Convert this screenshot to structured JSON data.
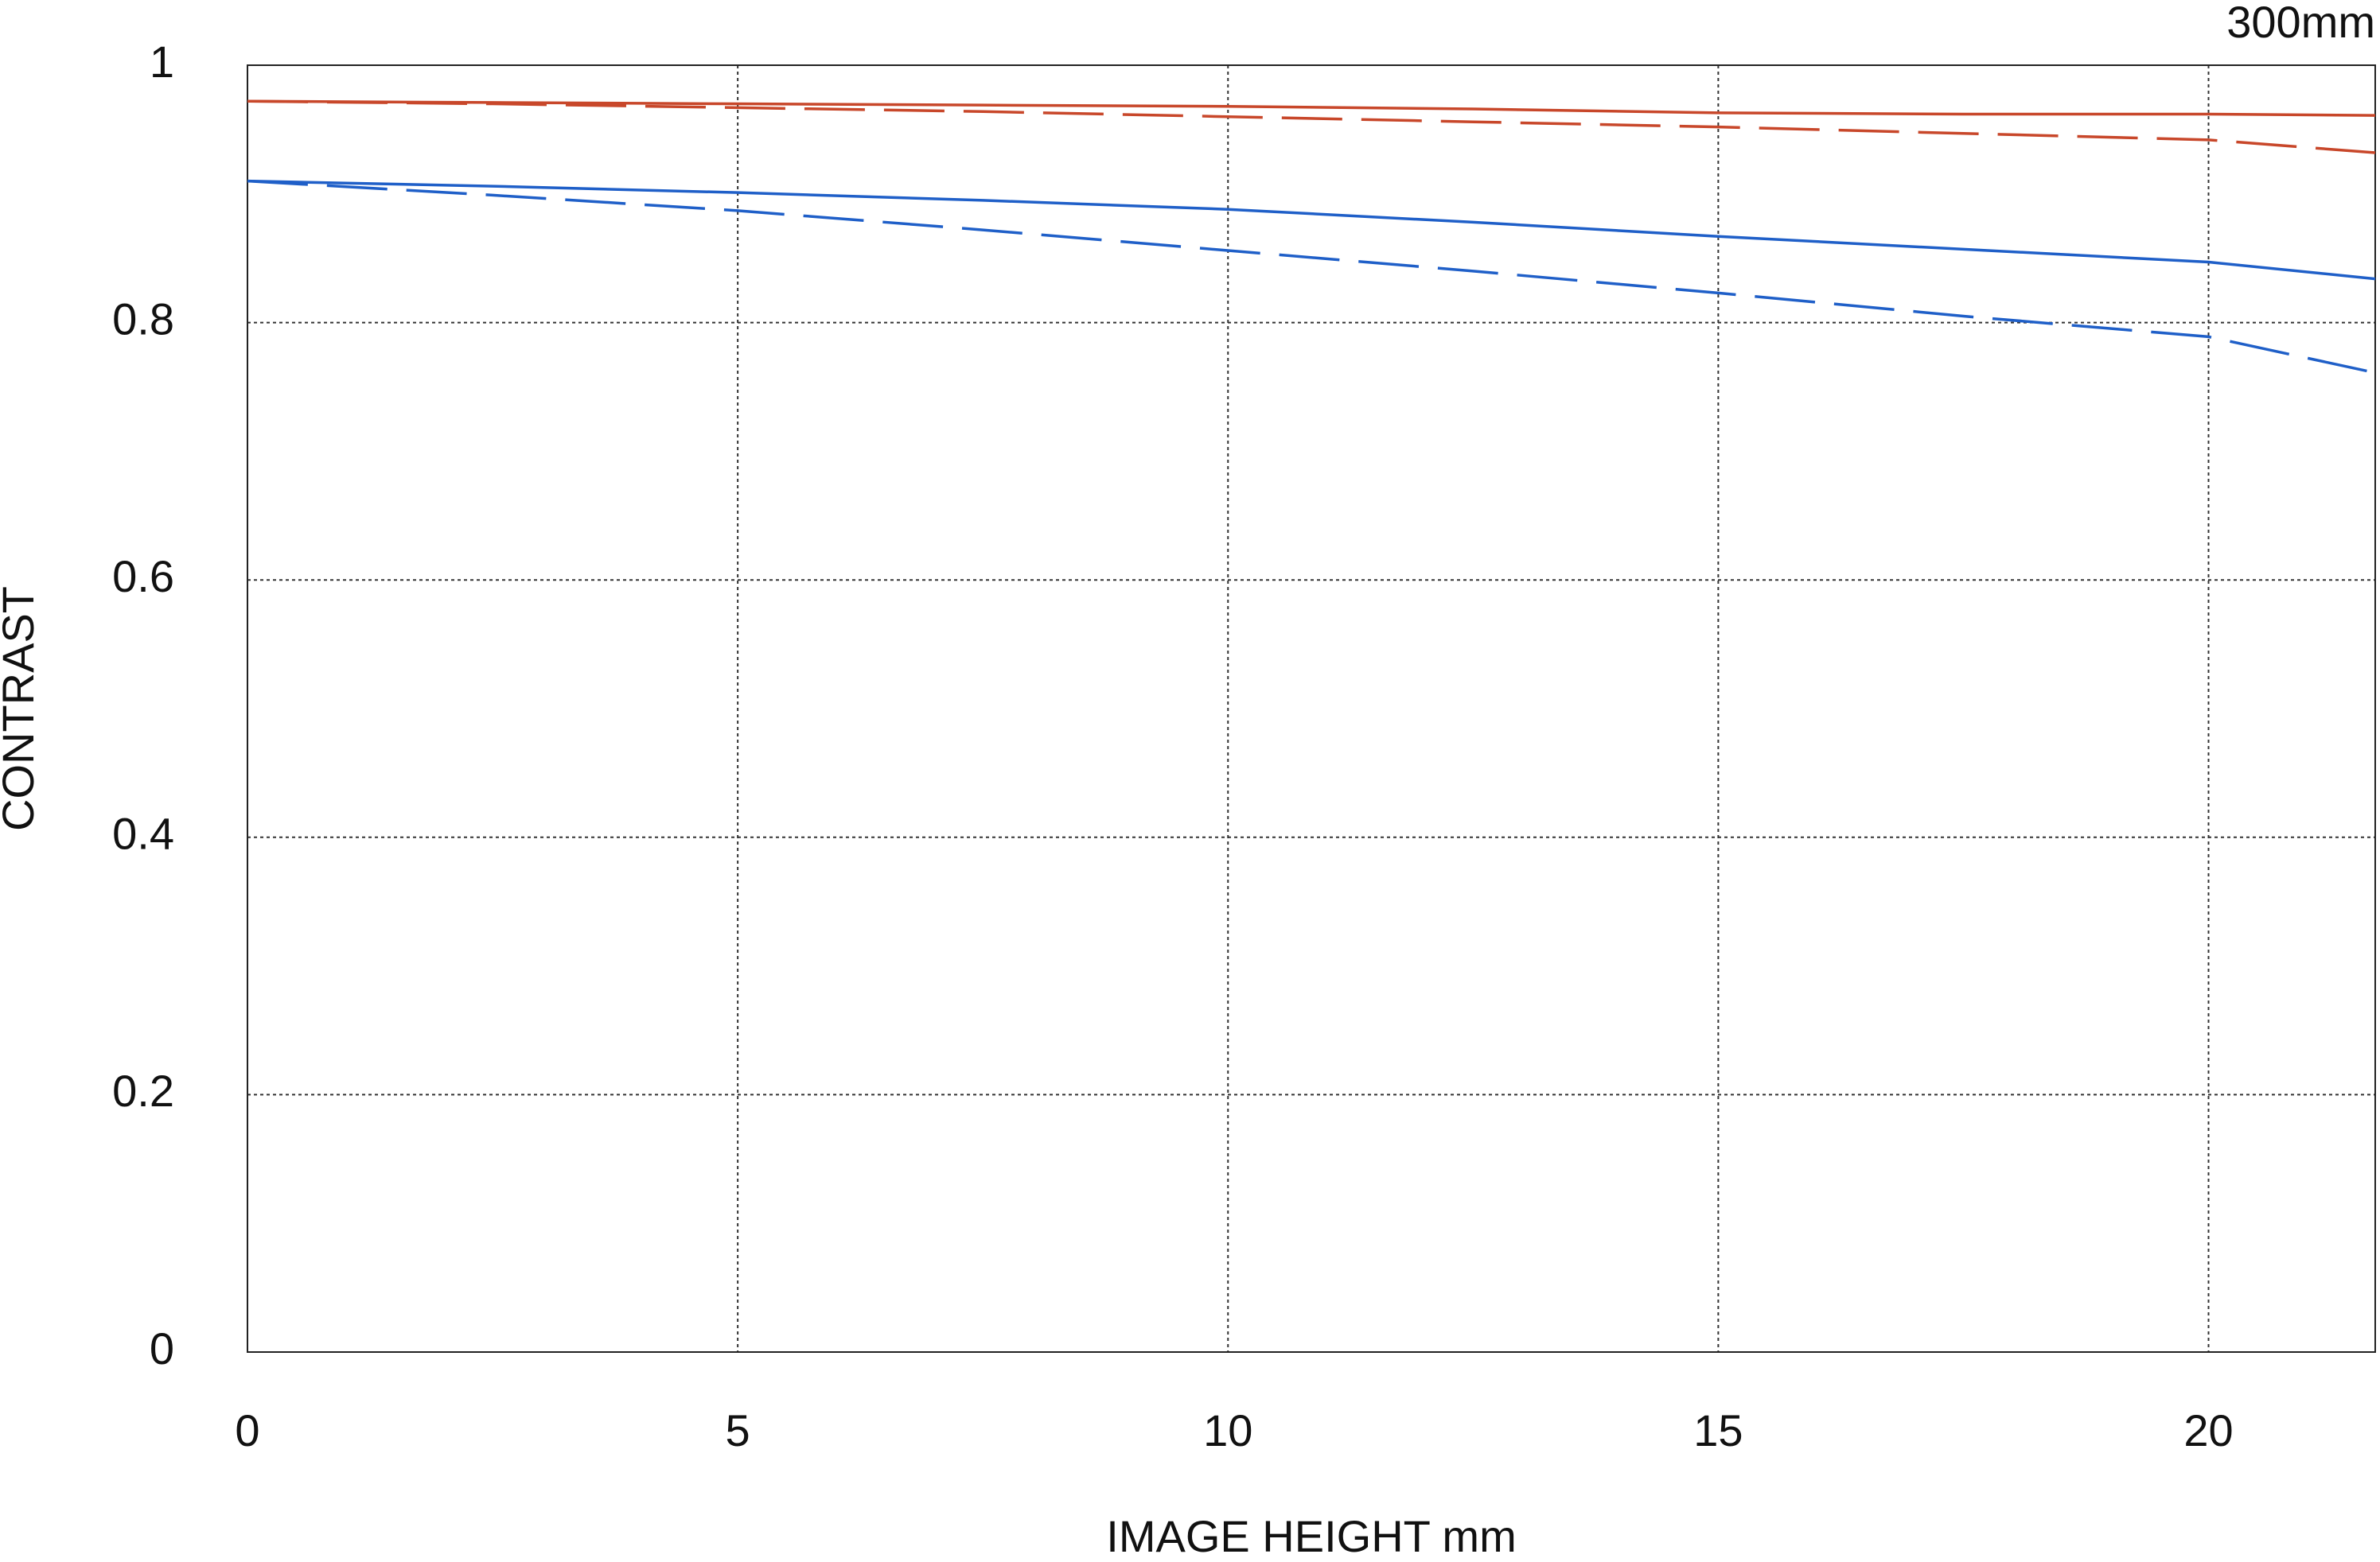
{
  "chart_data": {
    "type": "line",
    "title": "300mm",
    "x_label": "IMAGE HEIGHT  mm",
    "y_label": "CONTRAST",
    "x": [
      0,
      2.5,
      5,
      7.5,
      10,
      12.5,
      15,
      17.5,
      20,
      21.7
    ],
    "series": [
      {
        "color": "#c8472a",
        "dashed": false,
        "values": [
          0.972,
          0.971,
          0.97,
          0.969,
          0.968,
          0.966,
          0.963,
          0.962,
          0.962,
          0.961
        ]
      },
      {
        "color": "#c8472a",
        "dashed": true,
        "values": [
          0.972,
          0.97,
          0.967,
          0.964,
          0.96,
          0.956,
          0.952,
          0.947,
          0.942,
          0.932
        ]
      },
      {
        "color": "#1f5fc8",
        "dashed": false,
        "values": [
          0.91,
          0.906,
          0.901,
          0.895,
          0.888,
          0.878,
          0.867,
          0.857,
          0.847,
          0.834
        ]
      },
      {
        "color": "#1f5fc8",
        "dashed": true,
        "values": [
          0.91,
          0.899,
          0.887,
          0.872,
          0.856,
          0.84,
          0.823,
          0.805,
          0.789,
          0.761
        ]
      }
    ],
    "xlim": [
      0,
      21.7
    ],
    "xticks": [
      0,
      5,
      10,
      15,
      20
    ],
    "ylim": [
      0,
      1
    ],
    "yticks": [
      0,
      0.2,
      0.4,
      0.6,
      0.8,
      1
    ],
    "grid": true
  }
}
